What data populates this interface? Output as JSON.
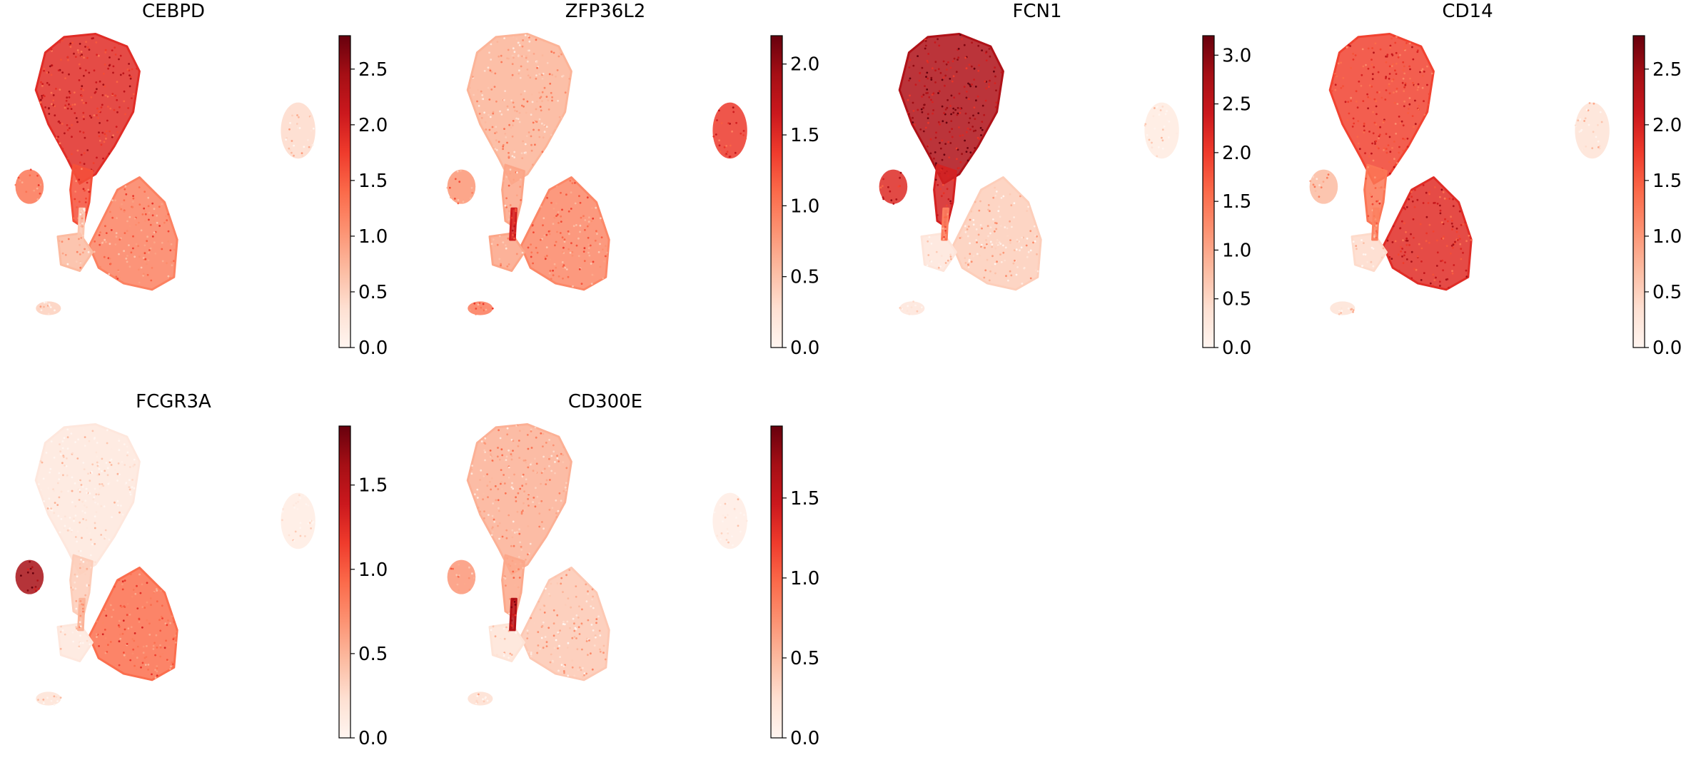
{
  "colormap": {
    "name": "Reds",
    "stops": [
      "#fff5f0",
      "#fee0d2",
      "#fcbba1",
      "#fc9272",
      "#fb6a4a",
      "#ef3b2c",
      "#cb181d",
      "#a50f15",
      "#67000d"
    ]
  },
  "chart_data": [
    {
      "type": "scatter",
      "title": "CEBPD",
      "vmin": 0,
      "vmax": 2.8,
      "colorbar_ticks": [
        0.0,
        0.5,
        1.0,
        1.5,
        2.0,
        2.5
      ],
      "colorbar_tick_labels": [
        "0.0",
        "0.5",
        "1.0",
        "1.5",
        "2.0",
        "2.5"
      ],
      "cluster_levels": {
        "classical_monocytes": 1.9,
        "intermediate_bridge": 1.6,
        "cd16_monocytes": 1.2,
        "nonclassical_left": 1.3,
        "lower_fragments": 0.7,
        "small_bottom": 0.5,
        "small_right": 0.4,
        "tiny_strip": 0.6
      }
    },
    {
      "type": "scatter",
      "title": "ZFP36L2",
      "vmin": 0,
      "vmax": 2.2,
      "colorbar_ticks": [
        0.0,
        0.5,
        1.0,
        1.5,
        2.0
      ],
      "colorbar_tick_labels": [
        "0.0",
        "0.5",
        "1.0",
        "1.5",
        "2.0"
      ],
      "cluster_levels": {
        "classical_monocytes": 0.6,
        "intermediate_bridge": 0.7,
        "cd16_monocytes": 0.9,
        "nonclassical_left": 0.8,
        "lower_fragments": 0.7,
        "small_bottom": 1.0,
        "small_right": 1.4,
        "tiny_strip": 1.6
      }
    },
    {
      "type": "scatter",
      "title": "FCN1",
      "vmin": 0,
      "vmax": 3.2,
      "colorbar_ticks": [
        0.0,
        0.5,
        1.0,
        1.5,
        2.0,
        2.5,
        3.0
      ],
      "colorbar_tick_labels": [
        "0.0",
        "0.5",
        "1.0",
        "1.5",
        "2.0",
        "2.5",
        "3.0"
      ],
      "cluster_levels": {
        "classical_monocytes": 2.7,
        "intermediate_bridge": 2.3,
        "cd16_monocytes": 0.6,
        "nonclassical_left": 2.2,
        "lower_fragments": 0.3,
        "small_bottom": 0.3,
        "small_right": 0.2,
        "tiny_strip": 1.4
      }
    },
    {
      "type": "scatter",
      "title": "CD14",
      "vmin": 0,
      "vmax": 2.8,
      "colorbar_ticks": [
        0.0,
        0.5,
        1.0,
        1.5,
        2.0,
        2.5
      ],
      "colorbar_tick_labels": [
        "0.0",
        "0.5",
        "1.0",
        "1.5",
        "2.0",
        "2.5"
      ],
      "cluster_levels": {
        "classical_monocytes": 1.7,
        "intermediate_bridge": 1.3,
        "cd16_monocytes": 1.9,
        "nonclassical_left": 0.7,
        "lower_fragments": 0.4,
        "small_bottom": 0.3,
        "small_right": 0.3,
        "tiny_strip": 1.2
      }
    },
    {
      "type": "scatter",
      "title": "FCGR3A",
      "vmin": 0,
      "vmax": 1.85,
      "colorbar_ticks": [
        0.0,
        0.5,
        1.0,
        1.5
      ],
      "colorbar_tick_labels": [
        "0.0",
        "0.5",
        "1.0",
        "1.5"
      ],
      "cluster_levels": {
        "classical_monocytes": 0.15,
        "intermediate_bridge": 0.35,
        "cd16_monocytes": 0.9,
        "nonclassical_left": 1.6,
        "lower_fragments": 0.15,
        "small_bottom": 0.2,
        "small_right": 0.1,
        "tiny_strip": 0.5
      }
    },
    {
      "type": "scatter",
      "title": "CD300E",
      "vmin": 0,
      "vmax": 1.95,
      "colorbar_ticks": [
        0.0,
        0.5,
        1.0,
        1.5
      ],
      "colorbar_tick_labels": [
        "0.0",
        "0.5",
        "1.0",
        "1.5"
      ],
      "cluster_levels": {
        "classical_monocytes": 0.55,
        "intermediate_bridge": 0.6,
        "cd16_monocytes": 0.4,
        "nonclassical_left": 0.7,
        "lower_fragments": 0.2,
        "small_bottom": 0.25,
        "small_right": 0.1,
        "tiny_strip": 1.6
      }
    }
  ]
}
